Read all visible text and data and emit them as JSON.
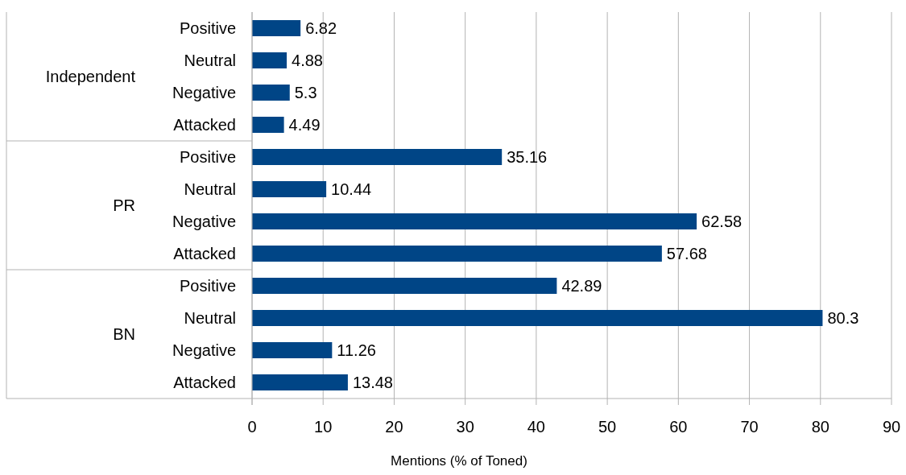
{
  "chart_data": {
    "type": "bar",
    "orientation": "horizontal",
    "xlabel": "Mentions (% of Toned)",
    "categories": [
      "Positive",
      "Neutral",
      "Negative",
      "Attacked",
      "Positive",
      "Neutral",
      "Negative",
      "Attacked",
      "Positive",
      "Neutral",
      "Negative",
      "Attacked"
    ],
    "annotations": [
      "Independent",
      "PR",
      "BN"
    ],
    "series": [
      {
        "color": "#004586",
        "values": [
          6.82,
          4.88,
          5.3,
          4.49,
          35.16,
          10.44,
          62.58,
          57.68,
          42.89,
          80.3,
          11.26,
          13.48
        ]
      }
    ],
    "xlim": [
      0,
      90
    ],
    "xticks": [
      0,
      10,
      20,
      30,
      40,
      50,
      60,
      70,
      80,
      90
    ],
    "grid": "x",
    "data_labels": true
  }
}
